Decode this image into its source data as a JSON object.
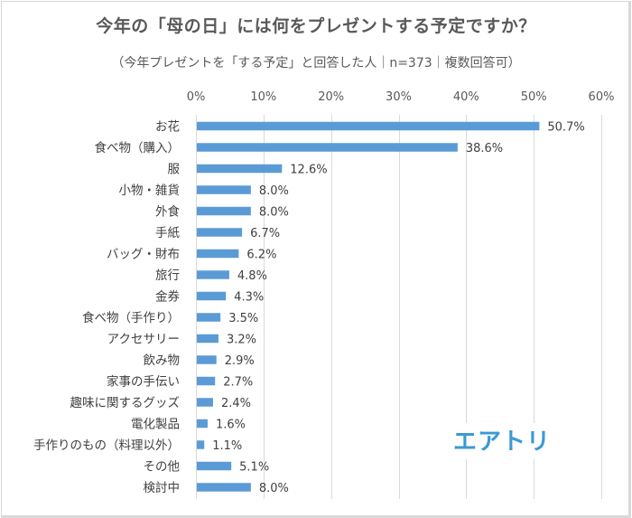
{
  "chart_data": {
    "type": "bar",
    "orientation": "horizontal",
    "title": "今年の「母の日」には何をプレゼントする予定ですか？",
    "subtitle": "（今年プレゼントを「する予定」と回答した人｜n=373｜複数回答可）",
    "xlabel": "",
    "ylabel": "",
    "xlim": [
      0,
      60
    ],
    "x_ticks": [
      0,
      10,
      20,
      30,
      40,
      50,
      60
    ],
    "x_tick_labels": [
      "0%",
      "10%",
      "20%",
      "30%",
      "40%",
      "50%",
      "60%"
    ],
    "x_axis_position": "top",
    "grid": true,
    "legend": "none",
    "value_suffix": "%",
    "bar_color": "#5b9bd5",
    "categories": [
      "お花",
      "食べ物（購入）",
      "服",
      "小物・雑貨",
      "外食",
      "手紙",
      "バッグ・財布",
      "旅行",
      "金券",
      "食べ物（手作り）",
      "アクセサリー",
      "飲み物",
      "家事の手伝い",
      "趣味に関するグッズ",
      "電化製品",
      "手作りのもの（料理以外）",
      "その他",
      "検討中"
    ],
    "values": [
      50.7,
      38.6,
      12.6,
      8.0,
      8.0,
      6.7,
      6.2,
      4.8,
      4.3,
      3.5,
      3.2,
      2.9,
      2.7,
      2.4,
      1.6,
      1.1,
      5.1,
      8.0
    ],
    "value_labels": [
      "50.7%",
      "38.6%",
      "12.6%",
      "8.0%",
      "8.0%",
      "6.7%",
      "6.2%",
      "4.8%",
      "4.3%",
      "3.5%",
      "3.2%",
      "2.9%",
      "2.7%",
      "2.4%",
      "1.6%",
      "1.1%",
      "5.1%",
      "8.0%"
    ]
  },
  "logo": {
    "text": "エアトリ",
    "color": "#3a9ad4"
  }
}
